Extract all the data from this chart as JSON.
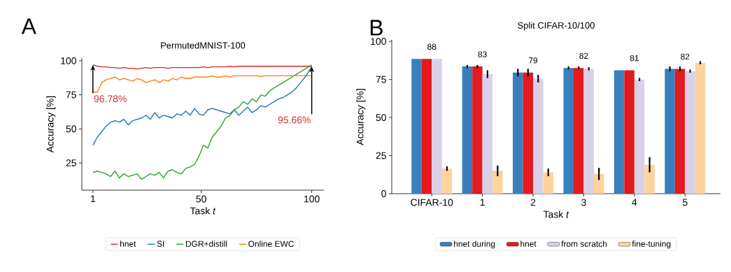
{
  "chart_data": [
    {
      "type": "line",
      "title": "PermutedMNIST-100",
      "xlabel": "Task *t*",
      "ylabel": "Accuracy [%]",
      "x": [
        1,
        3,
        5,
        7,
        9,
        11,
        13,
        15,
        17,
        19,
        21,
        23,
        25,
        27,
        29,
        31,
        33,
        35,
        37,
        39,
        41,
        43,
        45,
        47,
        49,
        51,
        53,
        55,
        57,
        59,
        61,
        63,
        65,
        67,
        69,
        71,
        73,
        75,
        77,
        79,
        81,
        83,
        85,
        87,
        89,
        91,
        93,
        95,
        97,
        99,
        100
      ],
      "series": [
        {
          "name": "hnet",
          "color": "#d62728",
          "values": [
            97,
            96,
            95.5,
            95.5,
            95,
            95,
            94.5,
            95,
            94.5,
            94.5,
            94,
            94.5,
            95,
            94.5,
            95,
            95,
            95,
            94.5,
            95,
            95,
            95,
            95,
            95,
            95,
            95,
            95.5,
            95,
            95.5,
            95.5,
            95.5,
            95.5,
            96,
            95.5,
            96,
            96,
            96,
            96,
            96,
            96,
            96,
            96,
            96,
            96,
            96,
            96,
            96,
            96,
            96,
            96,
            96,
            96
          ]
        },
        {
          "name": "SI",
          "color": "#1f77b4",
          "values": [
            38,
            44,
            48,
            52,
            55,
            56,
            55,
            57,
            53,
            56,
            57,
            58,
            60,
            57,
            62,
            58,
            60,
            59,
            58,
            61,
            60,
            63,
            60,
            65,
            61,
            60,
            64,
            65,
            64,
            63,
            62,
            61,
            64,
            60,
            63,
            66,
            62,
            64,
            67,
            66,
            68,
            70,
            72,
            73,
            75,
            77,
            80,
            84,
            88,
            93,
            96
          ]
        },
        {
          "name": "DGR+distill",
          "color": "#2ca02c",
          "values": [
            18,
            19,
            18,
            17,
            15,
            19,
            14,
            17,
            15,
            16,
            17,
            13,
            15,
            17,
            16,
            18,
            14,
            19,
            20,
            18,
            17,
            21,
            22,
            24,
            30,
            38,
            36,
            44,
            48,
            52,
            58,
            60,
            64,
            66,
            70,
            68,
            72,
            70,
            75,
            74,
            78,
            80,
            82,
            84,
            86,
            88,
            90,
            92,
            94,
            96,
            97
          ]
        },
        {
          "name": "Online EWC",
          "color": "#ff7f0e",
          "values": [
            77,
            77,
            84,
            86,
            87,
            88,
            86,
            87,
            86,
            85,
            87,
            86,
            84,
            85,
            86,
            84,
            86,
            85,
            87,
            86,
            88,
            87,
            87,
            88,
            88,
            88,
            88,
            89,
            88,
            88,
            89,
            88,
            89,
            89,
            89,
            89,
            89,
            89,
            88.5,
            89,
            89,
            89,
            89,
            89,
            89,
            89,
            89,
            89,
            89,
            89,
            89
          ]
        }
      ],
      "xlim": [
        -4,
        105.5
      ],
      "ylim": [
        5,
        102
      ],
      "xticks": [
        1,
        50,
        100
      ],
      "yticks": [
        25,
        50,
        75,
        100
      ],
      "legend": "bottom",
      "annotations": [
        "A",
        {
          "text": "96.78%",
          "x": 1,
          "y": 96.78
        },
        {
          "text": "95.66%",
          "x": 100,
          "y": 95.66
        }
      ]
    },
    {
      "type": "bar",
      "title": "Split CIFAR-10/100",
      "xlabel": "Task *t*",
      "ylabel": "Accuracy [%]",
      "categories": [
        "CIFAR-10",
        "1",
        "2",
        "3",
        "4",
        "5"
      ],
      "series": [
        {
          "name": "hnet during",
          "color": "#3a7fbd",
          "values": [
            88.5,
            83.5,
            79.5,
            82.5,
            81,
            82
          ],
          "errors": [
            null,
            1,
            2.5,
            1,
            null,
            1.5
          ]
        },
        {
          "name": "hnet",
          "color": "#e41a1c",
          "values": [
            88.5,
            83.5,
            79.5,
            82.5,
            81,
            82
          ],
          "errors": [
            null,
            1,
            2.5,
            1,
            null,
            1.5
          ]
        },
        {
          "name": "from scratch",
          "color": "#d9d0e8",
          "values": [
            88.5,
            78.5,
            75.5,
            82,
            75,
            80.5
          ],
          "errors": [
            null,
            2.5,
            2.5,
            1,
            1,
            1
          ]
        },
        {
          "name": "fine-tuning",
          "color": "#fdd39b",
          "values": [
            16.5,
            15,
            14,
            13,
            19,
            86
          ],
          "errors": [
            1.5,
            3.5,
            2.5,
            4,
            5,
            1
          ]
        }
      ],
      "ylim": [
        0,
        101
      ],
      "yticks": [
        0,
        25,
        50,
        75,
        100
      ],
      "legend": "bottom",
      "annotations": [
        "B",
        {
          "text": "88",
          "x": "CIFAR-10",
          "y": 88.5
        },
        {
          "text": "83",
          "x": "1",
          "y": 83.5
        },
        {
          "text": "79",
          "x": "2",
          "y": 79.5
        },
        {
          "text": "82",
          "x": "3",
          "y": 82.5
        },
        {
          "text": "81",
          "x": "4",
          "y": 81
        },
        {
          "text": "82",
          "x": "5",
          "y": 82
        }
      ]
    }
  ]
}
